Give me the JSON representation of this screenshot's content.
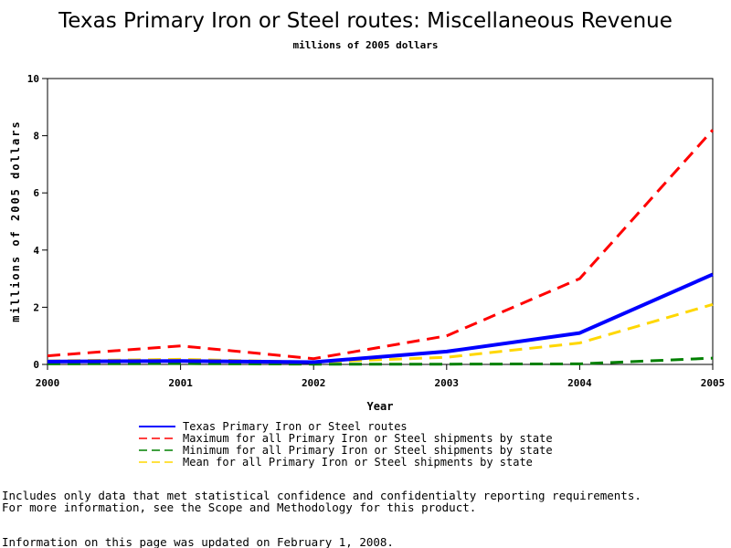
{
  "chart_data": {
    "type": "line",
    "title": "Texas Primary Iron or Steel routes: Miscellaneous Revenue",
    "subtitle": "millions of 2005 dollars",
    "xlabel": "Year",
    "ylabel": "millions of 2005 dollars",
    "x": [
      2000,
      2001,
      2002,
      2003,
      2004,
      2005
    ],
    "xlim": [
      2000,
      2005
    ],
    "ylim": [
      0,
      10
    ],
    "yticks": [
      0,
      2,
      4,
      6,
      8,
      10
    ],
    "xticks": [
      2000,
      2001,
      2002,
      2003,
      2004,
      2005
    ],
    "grid": false,
    "legend_position": "bottom",
    "series": [
      {
        "name": "Texas Primary Iron or Steel routes",
        "values": [
          0.1,
          0.12,
          0.08,
          0.45,
          1.1,
          3.15
        ],
        "color": "#0000ff",
        "style": "solid"
      },
      {
        "name": "Maximum for all Primary Iron or Steel shipments by state",
        "values": [
          0.3,
          0.65,
          0.2,
          1.0,
          3.0,
          8.2
        ],
        "color": "#ff0000",
        "style": "dashed"
      },
      {
        "name": "Minimum for all Primary Iron or Steel shipments by state",
        "values": [
          0.02,
          0.03,
          0.01,
          0.01,
          0.02,
          0.22
        ],
        "color": "#008000",
        "style": "dashed"
      },
      {
        "name": "Mean for all Primary Iron or Steel shipments by state",
        "values": [
          0.12,
          0.18,
          0.08,
          0.25,
          0.75,
          2.1
        ],
        "color": "#ffd700",
        "style": "dashed"
      }
    ]
  },
  "footnotes": {
    "line1": "Includes only data that met statistical confidence and confidentialty reporting requirements.",
    "line2": "For more information, see the Scope and Methodology for this product.",
    "updated": "Information on this page was updated on February 1, 2008."
  }
}
